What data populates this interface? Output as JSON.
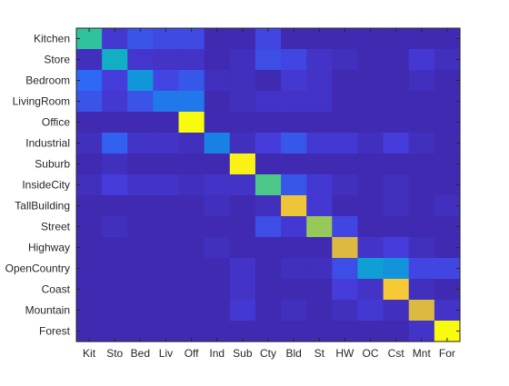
{
  "chart_data": {
    "type": "heatmap",
    "title": "",
    "xlabel": "",
    "ylabel": "",
    "colormap": "parula",
    "row_labels": [
      "Kitchen",
      "Store",
      "Bedroom",
      "LivingRoom",
      "Office",
      "Industrial",
      "Suburb",
      "InsideCity",
      "TallBuilding",
      "Street",
      "Highway",
      "OpenCountry",
      "Coast",
      "Mountain",
      "Forest"
    ],
    "col_labels": [
      "Kit",
      "Sto",
      "Bed",
      "Liv",
      "Off",
      "Ind",
      "Sub",
      "Cty",
      "Bld",
      "St",
      "HW",
      "OC",
      "Cst",
      "Mnt",
      "For"
    ],
    "values": [
      [
        0.55,
        0.08,
        0.15,
        0.13,
        0.13,
        0.02,
        0.02,
        0.12,
        0.02,
        0.02,
        0.02,
        0.02,
        0.02,
        0.02,
        0.02
      ],
      [
        0.04,
        0.45,
        0.07,
        0.06,
        0.06,
        0.02,
        0.04,
        0.14,
        0.12,
        0.06,
        0.04,
        0.02,
        0.02,
        0.08,
        0.04
      ],
      [
        0.2,
        0.1,
        0.35,
        0.12,
        0.16,
        0.04,
        0.04,
        0.02,
        0.08,
        0.06,
        0.02,
        0.02,
        0.02,
        0.04,
        0.02
      ],
      [
        0.15,
        0.08,
        0.15,
        0.25,
        0.25,
        0.02,
        0.04,
        0.06,
        0.06,
        0.06,
        0.02,
        0.02,
        0.02,
        0.02,
        0.02
      ],
      [
        0.02,
        0.02,
        0.02,
        0.02,
        1.0,
        0.02,
        0.02,
        0.02,
        0.02,
        0.02,
        0.02,
        0.02,
        0.02,
        0.02,
        0.02
      ],
      [
        0.04,
        0.18,
        0.06,
        0.06,
        0.04,
        0.28,
        0.04,
        0.1,
        0.16,
        0.08,
        0.08,
        0.04,
        0.1,
        0.04,
        0.02
      ],
      [
        0.02,
        0.04,
        0.02,
        0.02,
        0.02,
        0.02,
        0.98,
        0.02,
        0.02,
        0.02,
        0.02,
        0.02,
        0.02,
        0.02,
        0.02
      ],
      [
        0.04,
        0.1,
        0.06,
        0.06,
        0.04,
        0.06,
        0.06,
        0.6,
        0.16,
        0.08,
        0.04,
        0.02,
        0.04,
        0.02,
        0.02
      ],
      [
        0.02,
        0.02,
        0.02,
        0.02,
        0.02,
        0.04,
        0.02,
        0.04,
        0.86,
        0.08,
        0.02,
        0.02,
        0.04,
        0.02,
        0.04
      ],
      [
        0.02,
        0.04,
        0.02,
        0.02,
        0.02,
        0.02,
        0.02,
        0.14,
        0.08,
        0.7,
        0.12,
        0.02,
        0.02,
        0.02,
        0.02
      ],
      [
        0.02,
        0.02,
        0.02,
        0.02,
        0.02,
        0.04,
        0.02,
        0.02,
        0.02,
        0.02,
        0.8,
        0.06,
        0.1,
        0.04,
        0.02
      ],
      [
        0.02,
        0.02,
        0.02,
        0.02,
        0.02,
        0.02,
        0.06,
        0.02,
        0.04,
        0.04,
        0.14,
        0.38,
        0.34,
        0.12,
        0.12
      ],
      [
        0.02,
        0.02,
        0.02,
        0.02,
        0.02,
        0.02,
        0.06,
        0.02,
        0.02,
        0.02,
        0.1,
        0.06,
        0.88,
        0.04,
        0.02
      ],
      [
        0.02,
        0.02,
        0.02,
        0.02,
        0.02,
        0.02,
        0.08,
        0.02,
        0.04,
        0.02,
        0.04,
        0.08,
        0.04,
        0.8,
        0.06
      ],
      [
        0.02,
        0.02,
        0.02,
        0.02,
        0.02,
        0.02,
        0.02,
        0.02,
        0.02,
        0.02,
        0.02,
        0.02,
        0.02,
        0.06,
        1.0
      ]
    ],
    "clim": [
      0,
      1
    ],
    "grid": false,
    "legend": "none"
  }
}
